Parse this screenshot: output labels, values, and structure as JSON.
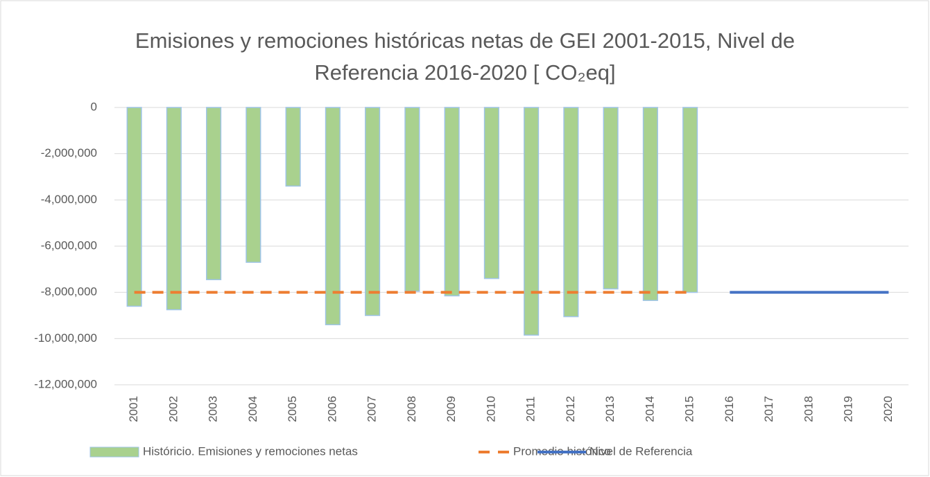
{
  "chart_data": {
    "type": "bar",
    "title": "Emisiones y remociones históricas netas de GEI 2001-2015, Nivel de Referencia 2016-2020 [ CO₂eq]",
    "categories": [
      "2001",
      "2002",
      "2003",
      "2004",
      "2005",
      "2006",
      "2007",
      "2008",
      "2009",
      "2010",
      "2011",
      "2012",
      "2013",
      "2014",
      "2015",
      "2016",
      "2017",
      "2018",
      "2019",
      "2020"
    ],
    "series": [
      {
        "name": "Históricio. Emisiones y remociones netas",
        "type": "bar",
        "color": "#a9d18e",
        "values": [
          -8600000,
          -8750000,
          -7450000,
          -6700000,
          -3400000,
          -9400000,
          -9000000,
          -7950000,
          -8150000,
          -7400000,
          -9850000,
          -9050000,
          -7850000,
          -8350000,
          -8000000,
          null,
          null,
          null,
          null,
          null
        ]
      },
      {
        "name": "Promedio histórico",
        "type": "line",
        "dashed": true,
        "color": "#ed7d31",
        "values": [
          -8000000,
          -8000000,
          -8000000,
          -8000000,
          -8000000,
          -8000000,
          -8000000,
          -8000000,
          -8000000,
          -8000000,
          -8000000,
          -8000000,
          -8000000,
          -8000000,
          -8000000,
          null,
          null,
          null,
          null,
          null
        ]
      },
      {
        "name": "Nivel de Referencia",
        "type": "line",
        "dashed": false,
        "color": "#4472c4",
        "values": [
          null,
          null,
          null,
          null,
          null,
          null,
          null,
          null,
          null,
          null,
          null,
          null,
          null,
          null,
          null,
          -8000000,
          -8000000,
          -8000000,
          -8000000,
          -8000000
        ]
      }
    ],
    "ylim": [
      -12000000,
      0
    ],
    "yticks": [
      0,
      {
        "value": -2000000,
        "label": "-2,000,000"
      },
      {
        "value": -4000000,
        "label": "-4,000,000"
      },
      {
        "value": -6000000,
        "label": "-6,000,000"
      },
      {
        "value": -8000000,
        "label": "-8,000,000"
      },
      {
        "value": -10000000,
        "label": "-10,000,000"
      },
      {
        "value": -12000000,
        "label": "-12,000,000"
      }
    ],
    "grid": true,
    "legend": "bottom"
  }
}
